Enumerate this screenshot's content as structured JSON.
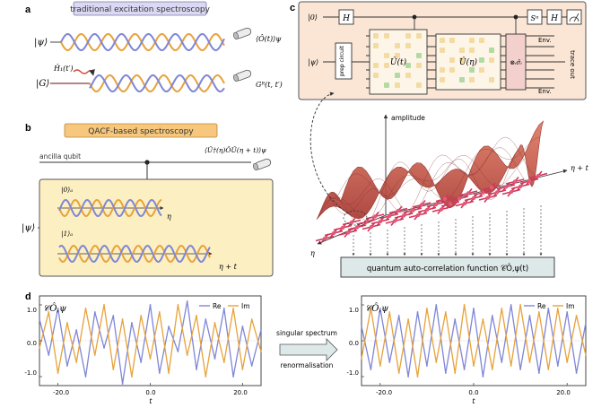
{
  "colors": {
    "wave_blue": "#7f86d6",
    "wave_orange": "#e8a23a",
    "title_fill_a": "#dad8f2",
    "title_fill_b": "#f6c77c",
    "panel_b_fill": "#fcf0c2",
    "panel_c_fill": "#fbe6d6",
    "qacf_box_fill": "#dde8e8",
    "surface": "#c6504a",
    "lattice": "#d0375a"
  },
  "panel_a": {
    "label": "a",
    "title": "traditional excitation spectroscopy",
    "state_psi": "|ψ⟩",
    "state_g": "|G⟩",
    "hamiltonian": "Ĥ₁(t′)",
    "obs_top": "⟨Ô(t)⟩ψ",
    "obs_bottom": "Gᴿ(t, t′)"
  },
  "panel_b": {
    "label": "b",
    "title": "QACF-based spectroscopy",
    "ancilla": "ancilla qubit",
    "obs": "⟨Û†(η)ÔÛ(η + t)⟩ψ",
    "state_psi": "|ψ⟩",
    "branch0": "|0⟩ₐ",
    "branch1": "|1⟩ₐ",
    "axis0": "η",
    "axis1": "η + t"
  },
  "panel_c": {
    "label": "c",
    "ket0": "|0⟩",
    "ketpsi": "|ψ⟩",
    "gate_h1": "H",
    "gate_sa": "Sᵅ",
    "gate_h2": "H",
    "prep": "prep circuit",
    "u_t": "Û(t)",
    "u_eta": "Û(η)",
    "sigma": "⊗ᵢσ̂ᵢ",
    "env_top": "Env.",
    "env_bottom": "Env.",
    "trace_out": "trace out",
    "amplitude": "amplitude",
    "axis_eta_t": "η + t",
    "axis_eta": "η",
    "qacf_label": "quantum auto-correlation function 𝒞Ô,ψ(t)"
  },
  "panel_d": {
    "label": "d",
    "left_title": "𝒞Ô,ψ",
    "right_title": "𝒞Ô,ψ",
    "legend_re": "Re",
    "legend_im": "Im",
    "arrow_text_1": "singular spectrum",
    "arrow_text_2": "renormalisation",
    "xlabel": "t",
    "y_ticks_left": [
      "1.0",
      "0.0",
      "-1.0"
    ],
    "y_ticks_right": [
      "1.0",
      "0.0",
      "-1.0"
    ],
    "x_ticks": [
      "-20.0",
      "0.0",
      "20.0"
    ]
  },
  "chart_data": [
    {
      "type": "line",
      "title": "𝒞Ô,ψ",
      "xlabel": "t",
      "ylabel": "",
      "xlim": [
        -24,
        24
      ],
      "ylim": [
        -1.25,
        1.25
      ],
      "x_ticks": [
        -20,
        0,
        20
      ],
      "y_ticks": [
        1.0,
        0.0,
        -1.0
      ],
      "legend": "top-right",
      "series": [
        {
          "name": "Re",
          "color": "#7f86d6",
          "x": [
            -24,
            -22,
            -20,
            -18,
            -16,
            -14,
            -12,
            -10,
            -8,
            -6,
            -4,
            -2,
            0,
            2,
            4,
            6,
            8,
            10,
            12,
            14,
            16,
            18,
            20,
            22,
            24
          ],
          "y": [
            0.6,
            -0.4,
            0.9,
            -0.7,
            0.3,
            -1.0,
            0.8,
            -0.2,
            0.7,
            -1.2,
            0.5,
            -0.6,
            1.0,
            -0.9,
            0.4,
            -0.3,
            1.1,
            -0.8,
            0.6,
            -0.5,
            0.9,
            -1.0,
            0.4,
            -0.7,
            0.3
          ]
        },
        {
          "name": "Im",
          "color": "#e8a23a",
          "x": [
            -24,
            -22,
            -20,
            -18,
            -16,
            -14,
            -12,
            -10,
            -8,
            -6,
            -4,
            -2,
            0,
            2,
            4,
            6,
            8,
            10,
            12,
            14,
            16,
            18,
            20,
            22,
            24
          ],
          "y": [
            -0.2,
            0.8,
            -0.9,
            0.5,
            -0.6,
            0.9,
            -0.4,
            1.0,
            -0.8,
            0.6,
            -1.0,
            0.7,
            -0.5,
            0.8,
            -0.9,
            1.0,
            -0.4,
            0.7,
            -1.0,
            0.5,
            -0.6,
            0.9,
            -0.8,
            0.6,
            -0.3
          ]
        }
      ]
    },
    {
      "type": "line",
      "title": "𝒞Ô,ψ",
      "xlabel": "t",
      "ylabel": "",
      "xlim": [
        -24,
        24
      ],
      "ylim": [
        -1.25,
        1.25
      ],
      "x_ticks": [
        -20,
        0,
        20
      ],
      "y_ticks": [
        1.0,
        0.0,
        -1.0
      ],
      "legend": "top-right",
      "series": [
        {
          "name": "Re",
          "color": "#7f86d6",
          "x": [
            -24,
            -22,
            -20,
            -18,
            -16,
            -14,
            -12,
            -10,
            -8,
            -6,
            -4,
            -2,
            0,
            2,
            4,
            6,
            8,
            10,
            12,
            14,
            16,
            18,
            20,
            22,
            24
          ],
          "y": [
            0.4,
            -0.8,
            0.9,
            -0.6,
            0.7,
            -1.0,
            0.8,
            -0.7,
            1.0,
            -0.9,
            0.6,
            -0.8,
            0.9,
            -1.0,
            0.7,
            -0.6,
            1.0,
            -0.8,
            0.7,
            -0.9,
            0.9,
            -0.7,
            0.8,
            -0.9,
            0.5
          ]
        },
        {
          "name": "Im",
          "color": "#e8a23a",
          "x": [
            -24,
            -22,
            -20,
            -18,
            -16,
            -14,
            -12,
            -10,
            -8,
            -6,
            -4,
            -2,
            0,
            2,
            4,
            6,
            8,
            10,
            12,
            14,
            16,
            18,
            20,
            22,
            24
          ],
          "y": [
            -0.5,
            0.9,
            -0.7,
            0.8,
            -0.9,
            0.6,
            -1.0,
            0.9,
            -0.6,
            0.8,
            -0.9,
            1.0,
            -0.7,
            0.6,
            -0.8,
            0.9,
            -0.7,
            1.0,
            -0.6,
            0.8,
            -0.8,
            0.9,
            -0.6,
            0.7,
            -0.4
          ]
        }
      ]
    }
  ]
}
